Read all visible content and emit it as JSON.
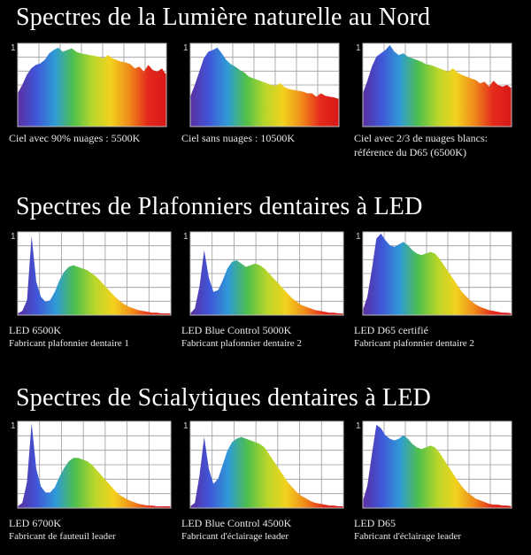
{
  "sections": [
    {
      "title": "Spectres de la Lumière naturelle au Nord"
    },
    {
      "title": "Spectres de Plafonniers dentaires à LED"
    },
    {
      "title": "Spectres de Scialytiques dentaires à LED"
    }
  ],
  "panels": [
    {
      "caption1": "Ciel avec 90% nuages : 5500K",
      "caption2": "",
      "ymax": "1"
    },
    {
      "caption1": "Ciel sans nuages : 10500K",
      "caption2": "",
      "ymax": "1"
    },
    {
      "caption1": "Ciel avec 2/3 de nuages blancs:",
      "caption2": "référence du D65  (6500K)",
      "ymax": "1"
    },
    {
      "caption1": "LED 6500K",
      "caption2": "Fabricant plafonnier dentaire 1",
      "ymax": "1"
    },
    {
      "caption1": "LED Blue Control 5000K",
      "caption2": "Fabricant plafonnier dentaire 2",
      "ymax": "1"
    },
    {
      "caption1": "LED D65  certifié",
      "caption2": "Fabricant plafonnier dentaire 2",
      "ymax": "1"
    },
    {
      "caption1": "LED 6700K",
      "caption2": "Fabricant de fauteuil leader",
      "ymax": "1"
    },
    {
      "caption1": "LED Blue Control 4500K",
      "caption2": "Fabricant d'éclairage leader",
      "ymax": "1"
    },
    {
      "caption1": "LED D65",
      "caption2": "Fabricant d'éclairage leader",
      "ymax": "1"
    }
  ],
  "chart_data": {
    "type": "area",
    "ylim": [
      0,
      1
    ],
    "grid": true,
    "spectrum_colors": [
      "#5a2fa0",
      "#3f56d8",
      "#2f9ad6",
      "#4fc04a",
      "#b7d62a",
      "#f2d21e",
      "#f08a1a",
      "#e42a1c",
      "#d81818"
    ],
    "series": [
      {
        "values": [
          0.4,
          0.5,
          0.62,
          0.7,
          0.74,
          0.76,
          0.8,
          0.88,
          0.92,
          0.95,
          0.9,
          0.92,
          0.94,
          0.9,
          0.88,
          0.87,
          0.86,
          0.85,
          0.84,
          0.82,
          0.86,
          0.82,
          0.8,
          0.78,
          0.77,
          0.75,
          0.7,
          0.72,
          0.66,
          0.74,
          0.68,
          0.66,
          0.7,
          0.62
        ]
      },
      {
        "values": [
          0.36,
          0.5,
          0.66,
          0.82,
          0.9,
          0.92,
          0.95,
          0.88,
          0.8,
          0.75,
          0.72,
          0.68,
          0.65,
          0.6,
          0.58,
          0.56,
          0.54,
          0.52,
          0.5,
          0.49,
          0.52,
          0.47,
          0.45,
          0.44,
          0.43,
          0.42,
          0.4,
          0.4,
          0.36,
          0.4,
          0.37,
          0.36,
          0.35,
          0.33
        ]
      },
      {
        "values": [
          0.4,
          0.55,
          0.72,
          0.84,
          0.88,
          0.92,
          0.98,
          0.9,
          0.86,
          0.88,
          0.84,
          0.82,
          0.8,
          0.78,
          0.75,
          0.74,
          0.72,
          0.7,
          0.68,
          0.66,
          0.7,
          0.65,
          0.62,
          0.6,
          0.58,
          0.56,
          0.52,
          0.54,
          0.48,
          0.55,
          0.5,
          0.48,
          0.5,
          0.46
        ]
      },
      {
        "values": [
          0.02,
          0.05,
          0.18,
          0.95,
          0.4,
          0.22,
          0.16,
          0.18,
          0.28,
          0.42,
          0.52,
          0.58,
          0.6,
          0.58,
          0.56,
          0.54,
          0.5,
          0.46,
          0.4,
          0.34,
          0.28,
          0.22,
          0.17,
          0.13,
          0.1,
          0.08,
          0.06,
          0.05,
          0.04,
          0.03,
          0.03,
          0.02,
          0.02,
          0.02
        ]
      },
      {
        "values": [
          0.02,
          0.08,
          0.35,
          0.78,
          0.45,
          0.28,
          0.3,
          0.42,
          0.56,
          0.64,
          0.66,
          0.62,
          0.58,
          0.6,
          0.62,
          0.6,
          0.56,
          0.5,
          0.44,
          0.38,
          0.32,
          0.26,
          0.2,
          0.16,
          0.12,
          0.1,
          0.08,
          0.06,
          0.05,
          0.04,
          0.03,
          0.03,
          0.02,
          0.02
        ]
      },
      {
        "values": [
          0.06,
          0.22,
          0.55,
          0.92,
          0.98,
          0.9,
          0.84,
          0.82,
          0.85,
          0.88,
          0.84,
          0.78,
          0.74,
          0.72,
          0.74,
          0.76,
          0.74,
          0.68,
          0.6,
          0.52,
          0.44,
          0.36,
          0.28,
          0.22,
          0.17,
          0.13,
          0.1,
          0.08,
          0.06,
          0.05,
          0.04,
          0.03,
          0.03,
          0.02
        ]
      },
      {
        "values": [
          0.02,
          0.06,
          0.3,
          0.98,
          0.45,
          0.25,
          0.18,
          0.18,
          0.24,
          0.36,
          0.46,
          0.54,
          0.58,
          0.58,
          0.56,
          0.54,
          0.5,
          0.44,
          0.38,
          0.32,
          0.26,
          0.2,
          0.15,
          0.12,
          0.09,
          0.07,
          0.05,
          0.04,
          0.03,
          0.03,
          0.02,
          0.02,
          0.02,
          0.02
        ]
      },
      {
        "values": [
          0.02,
          0.06,
          0.38,
          0.82,
          0.45,
          0.28,
          0.34,
          0.5,
          0.66,
          0.76,
          0.8,
          0.82,
          0.8,
          0.78,
          0.76,
          0.74,
          0.7,
          0.62,
          0.54,
          0.46,
          0.38,
          0.3,
          0.24,
          0.18,
          0.14,
          0.11,
          0.08,
          0.06,
          0.05,
          0.04,
          0.03,
          0.03,
          0.02,
          0.02
        ]
      },
      {
        "values": [
          0.08,
          0.26,
          0.62,
          0.96,
          0.92,
          0.84,
          0.8,
          0.78,
          0.8,
          0.84,
          0.8,
          0.74,
          0.7,
          0.68,
          0.7,
          0.72,
          0.7,
          0.64,
          0.56,
          0.48,
          0.4,
          0.32,
          0.25,
          0.19,
          0.15,
          0.11,
          0.09,
          0.07,
          0.05,
          0.04,
          0.04,
          0.03,
          0.03,
          0.02
        ]
      }
    ]
  }
}
